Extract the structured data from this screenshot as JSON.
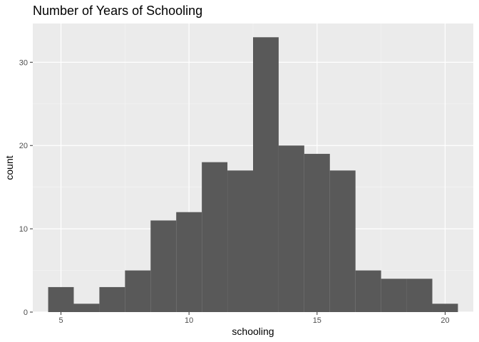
{
  "chart_data": {
    "type": "bar",
    "subtype": "histogram",
    "title": "Number of Years of Schooling",
    "xlabel": "schooling",
    "ylabel": "count",
    "xlim": [
      3.9,
      21.1
    ],
    "ylim": [
      0,
      34.65
    ],
    "x_ticks": [
      5,
      10,
      15,
      20
    ],
    "x_tick_labels": [
      "5",
      "10",
      "15",
      "20"
    ],
    "y_ticks": [
      0,
      10,
      20,
      30
    ],
    "y_tick_labels": [
      "0",
      "10",
      "20",
      "30"
    ],
    "bin_width": 1,
    "bins": [
      {
        "x_center": 5,
        "count": 3
      },
      {
        "x_center": 6,
        "count": 1
      },
      {
        "x_center": 7,
        "count": 3
      },
      {
        "x_center": 8,
        "count": 5
      },
      {
        "x_center": 9,
        "count": 11
      },
      {
        "x_center": 10,
        "count": 12
      },
      {
        "x_center": 11,
        "count": 18
      },
      {
        "x_center": 12,
        "count": 17
      },
      {
        "x_center": 13,
        "count": 33
      },
      {
        "x_center": 14,
        "count": 20
      },
      {
        "x_center": 15,
        "count": 19
      },
      {
        "x_center": 16,
        "count": 17
      },
      {
        "x_center": 17,
        "count": 5
      },
      {
        "x_center": 18,
        "count": 4
      },
      {
        "x_center": 19,
        "count": 4
      },
      {
        "x_center": 20,
        "count": 1
      }
    ],
    "grid": true,
    "colors": {
      "panel_background": "#ebebeb",
      "grid_major": "#ffffff",
      "grid_minor": "#f5f5f5",
      "bar_fill": "#595959",
      "tick_mark": "#333333"
    }
  }
}
